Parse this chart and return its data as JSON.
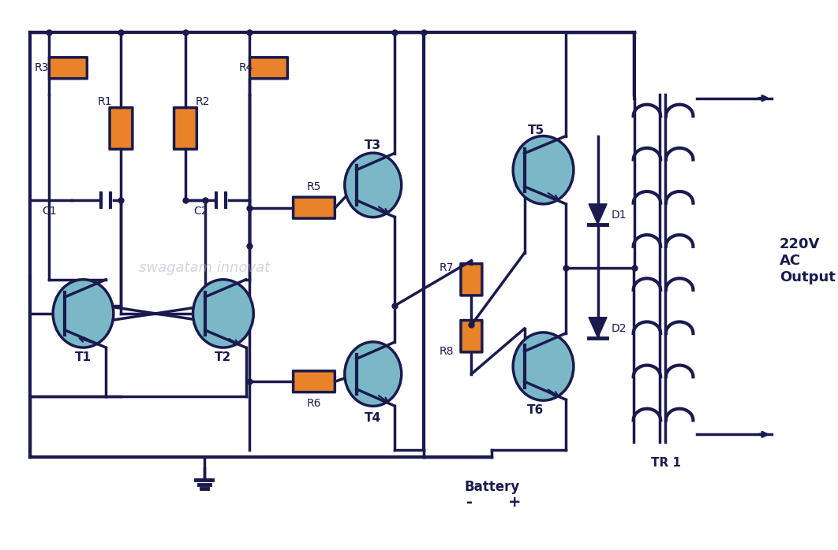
{
  "bg_color": "#ffffff",
  "line_color": "#1a1a4e",
  "component_fill": "#e8832a",
  "transistor_fill": "#7ab8c8",
  "transistor_edge": "#1a1a4e",
  "text_color": "#1a1a4e",
  "watermark": "swagatam innovat",
  "title_text": "220V\nAC\nOutput",
  "battery_text": "Battery",
  "tr1_text": "TR 1",
  "lw": 2.5
}
